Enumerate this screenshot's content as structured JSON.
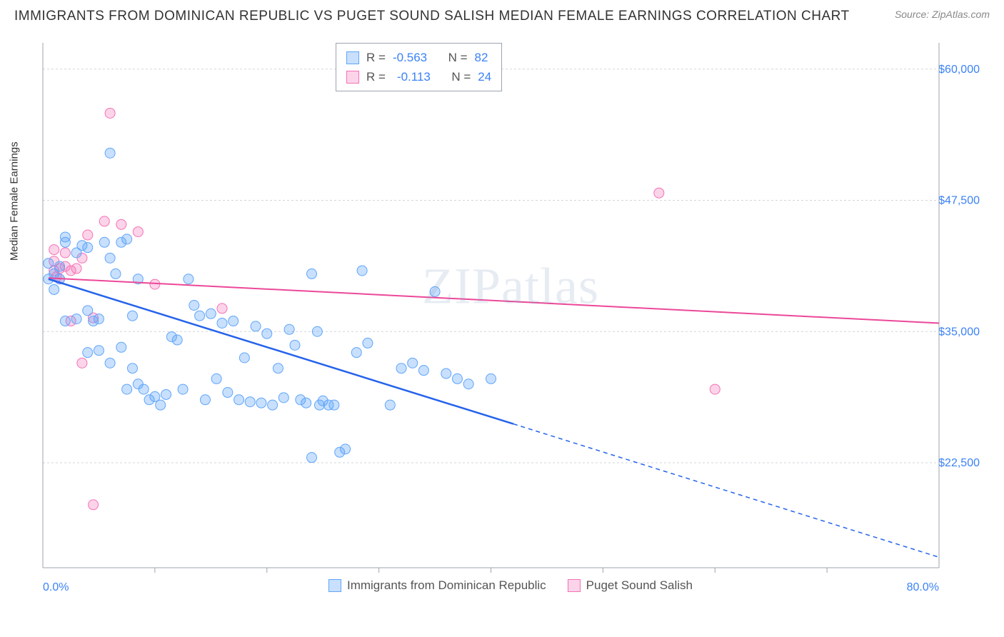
{
  "title": "IMMIGRANTS FROM DOMINICAN REPUBLIC VS PUGET SOUND SALISH MEDIAN FEMALE EARNINGS CORRELATION CHART",
  "source": "Source: ZipAtlas.com",
  "watermark_a": "ZIP",
  "watermark_b": "atlas",
  "y_axis_label": "Median Female Earnings",
  "chart": {
    "type": "scatter",
    "background_color": "#ffffff",
    "grid_color": "#d1d5db",
    "axis_color": "#9ca3af",
    "xlim": [
      0,
      80
    ],
    "ylim": [
      12500,
      62500
    ],
    "x_tick_labels": [
      {
        "pos": 0,
        "label": "0.0%"
      },
      {
        "pos": 80,
        "label": "80.0%"
      }
    ],
    "x_minor_ticks": [
      10,
      20,
      30,
      40,
      50,
      60,
      70
    ],
    "y_ticks": [
      {
        "val": 22500,
        "label": "$22,500"
      },
      {
        "val": 35000,
        "label": "$35,000"
      },
      {
        "val": 47500,
        "label": "$47,500"
      },
      {
        "val": 60000,
        "label": "$60,000"
      }
    ],
    "series_a": {
      "name": "Immigrants from Dominican Republic",
      "color_fill": "rgba(96, 165, 250, 0.35)",
      "color_stroke": "#60a5fa",
      "line_color": "#2563eb",
      "line_width": 2.5,
      "R": "-0.563",
      "N": "82",
      "points": [
        [
          0.5,
          40000
        ],
        [
          0.5,
          41500
        ],
        [
          1,
          39000
        ],
        [
          1,
          40500
        ],
        [
          1.5,
          40000
        ],
        [
          1.5,
          41200
        ],
        [
          2,
          43500
        ],
        [
          2,
          44000
        ],
        [
          3,
          42500
        ],
        [
          3.5,
          43200
        ],
        [
          4,
          43000
        ],
        [
          6,
          52000
        ],
        [
          4.5,
          36000
        ],
        [
          5,
          36200
        ],
        [
          5.5,
          43500
        ],
        [
          6,
          42000
        ],
        [
          6.5,
          40500
        ],
        [
          7,
          43500
        ],
        [
          7.5,
          43800
        ],
        [
          8,
          36500
        ],
        [
          8.5,
          40000
        ],
        [
          2,
          36000
        ],
        [
          3,
          36200
        ],
        [
          4,
          37000
        ],
        [
          4,
          33000
        ],
        [
          5,
          33200
        ],
        [
          6,
          32000
        ],
        [
          7,
          33500
        ],
        [
          7.5,
          29500
        ],
        [
          8,
          31500
        ],
        [
          8.5,
          30000
        ],
        [
          9,
          29500
        ],
        [
          9.5,
          28500
        ],
        [
          10,
          28800
        ],
        [
          10.5,
          28000
        ],
        [
          11,
          29000
        ],
        [
          11.5,
          34500
        ],
        [
          12,
          34200
        ],
        [
          12.5,
          29500
        ],
        [
          13,
          40000
        ],
        [
          13.5,
          37500
        ],
        [
          14,
          36500
        ],
        [
          14.5,
          28500
        ],
        [
          15,
          36700
        ],
        [
          15.5,
          30500
        ],
        [
          16,
          35800
        ],
        [
          16.5,
          29200
        ],
        [
          17,
          36000
        ],
        [
          17.5,
          28500
        ],
        [
          18,
          32500
        ],
        [
          18.5,
          28300
        ],
        [
          19,
          35500
        ],
        [
          19.5,
          28200
        ],
        [
          20,
          34800
        ],
        [
          20.5,
          28000
        ],
        [
          21,
          31500
        ],
        [
          21.5,
          28700
        ],
        [
          22,
          35200
        ],
        [
          22.5,
          33700
        ],
        [
          23,
          28500
        ],
        [
          23.5,
          28200
        ],
        [
          24,
          40500
        ],
        [
          24.5,
          35000
        ],
        [
          24.7,
          28000
        ],
        [
          25,
          28400
        ],
        [
          25.5,
          28000
        ],
        [
          26,
          28000
        ],
        [
          26.5,
          23500
        ],
        [
          27,
          23800
        ],
        [
          28,
          33000
        ],
        [
          28.5,
          40800
        ],
        [
          29,
          33900
        ],
        [
          31,
          28000
        ],
        [
          32,
          31500
        ],
        [
          33,
          32000
        ],
        [
          34,
          31300
        ],
        [
          35,
          38800
        ],
        [
          36,
          31000
        ],
        [
          37,
          30500
        ],
        [
          38,
          30000
        ],
        [
          40,
          30500
        ],
        [
          24,
          23000
        ]
      ],
      "trend": {
        "x1": 0.5,
        "y1": 40000,
        "x2_solid": 42,
        "y2_solid": 26200,
        "x2": 80,
        "y2": 13500
      }
    },
    "series_b": {
      "name": "Puget Sound Salish",
      "color_fill": "rgba(244, 114, 182, 0.3)",
      "color_stroke": "#f472b6",
      "line_color": "#ec4899",
      "line_width": 2,
      "R": "-0.113",
      "N": "24",
      "points": [
        [
          1,
          42800
        ],
        [
          1,
          41700
        ],
        [
          1,
          40800
        ],
        [
          1.2,
          40200
        ],
        [
          1.5,
          41000
        ],
        [
          1.5,
          40000
        ],
        [
          2,
          42500
        ],
        [
          2,
          41200
        ],
        [
          2.5,
          40800
        ],
        [
          2.5,
          36000
        ],
        [
          3,
          41000
        ],
        [
          3.5,
          42000
        ],
        [
          4,
          44200
        ],
        [
          5.5,
          45500
        ],
        [
          6,
          55800
        ],
        [
          3.5,
          32000
        ],
        [
          4.5,
          36300
        ],
        [
          7,
          45200
        ],
        [
          8.5,
          44500
        ],
        [
          10,
          39500
        ],
        [
          16,
          37200
        ],
        [
          55,
          48200
        ],
        [
          4.5,
          18500
        ],
        [
          60,
          29500
        ]
      ],
      "trend": {
        "x1": 0.5,
        "y1": 40100,
        "x2": 80,
        "y2": 35800
      }
    },
    "marker_radius": 7
  },
  "stats_prefix_R": "R = ",
  "stats_prefix_N": "N = "
}
